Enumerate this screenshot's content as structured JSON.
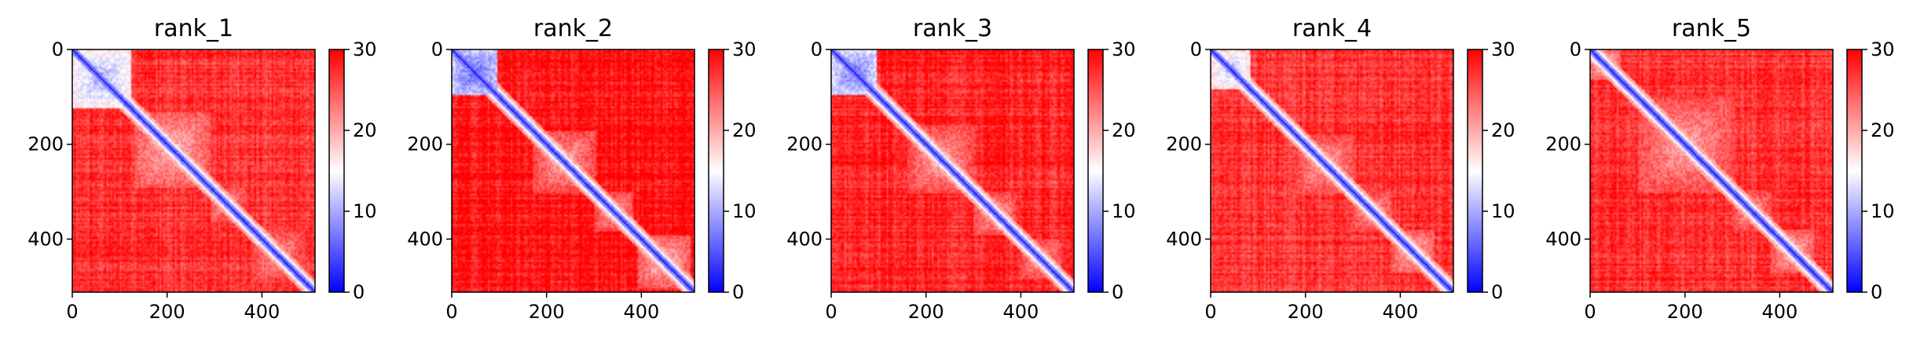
{
  "chart_data": [
    {
      "type": "heatmap",
      "title": "rank_1",
      "matrix_size": 512,
      "xlim": [
        0,
        512
      ],
      "ylim": [
        512,
        0
      ],
      "xticks": [
        0,
        200,
        400
      ],
      "yticks": [
        0,
        200,
        400
      ],
      "colorbar": {
        "ticks": [
          0,
          10,
          20,
          30
        ],
        "range": [
          0,
          30
        ],
        "colormap": "bwr"
      },
      "diag_seed": 1,
      "low_blocks": [
        {
          "start": 0,
          "end": 120,
          "value": 10
        },
        {
          "start": 130,
          "end": 290,
          "value": 19
        },
        {
          "start": 290,
          "end": 360,
          "value": 20
        },
        {
          "start": 375,
          "end": 490,
          "value": 21
        }
      ],
      "background": 27
    },
    {
      "type": "heatmap",
      "title": "rank_2",
      "matrix_size": 512,
      "xlim": [
        0,
        512
      ],
      "ylim": [
        512,
        0
      ],
      "xticks": [
        0,
        200,
        400
      ],
      "yticks": [
        0,
        200,
        400
      ],
      "colorbar": {
        "ticks": [
          0,
          10,
          20,
          30
        ],
        "range": [
          0,
          30
        ],
        "colormap": "bwr"
      },
      "diag_seed": 2,
      "low_blocks": [
        {
          "start": 0,
          "end": 95,
          "value": 6
        },
        {
          "start": 170,
          "end": 300,
          "value": 20
        },
        {
          "start": 300,
          "end": 380,
          "value": 20
        },
        {
          "start": 390,
          "end": 500,
          "value": 19
        }
      ],
      "background": 29
    },
    {
      "type": "heatmap",
      "title": "rank_3",
      "matrix_size": 512,
      "xlim": [
        0,
        512
      ],
      "ylim": [
        512,
        0
      ],
      "xticks": [
        0,
        200,
        400
      ],
      "yticks": [
        0,
        200,
        400
      ],
      "colorbar": {
        "ticks": [
          0,
          10,
          20,
          30
        ],
        "range": [
          0,
          30
        ],
        "colormap": "bwr"
      },
      "diag_seed": 3,
      "low_blocks": [
        {
          "start": 0,
          "end": 95,
          "value": 7
        },
        {
          "start": 160,
          "end": 300,
          "value": 20
        },
        {
          "start": 300,
          "end": 390,
          "value": 20
        },
        {
          "start": 400,
          "end": 480,
          "value": 20
        }
      ],
      "background": 28
    },
    {
      "type": "heatmap",
      "title": "rank_4",
      "matrix_size": 512,
      "xlim": [
        0,
        512
      ],
      "ylim": [
        512,
        0
      ],
      "xticks": [
        0,
        200,
        400
      ],
      "yticks": [
        0,
        200,
        400
      ],
      "colorbar": {
        "ticks": [
          0,
          10,
          20,
          30
        ],
        "range": [
          0,
          30
        ],
        "colormap": "bwr"
      },
      "diag_seed": 4,
      "low_blocks": [
        {
          "start": 0,
          "end": 80,
          "value": 11
        },
        {
          "start": 180,
          "end": 300,
          "value": 20
        },
        {
          "start": 300,
          "end": 380,
          "value": 20
        },
        {
          "start": 380,
          "end": 470,
          "value": 19
        }
      ],
      "background": 27
    },
    {
      "type": "heatmap",
      "title": "rank_5",
      "matrix_size": 512,
      "xlim": [
        0,
        512
      ],
      "ylim": [
        512,
        0
      ],
      "xticks": [
        0,
        200,
        400
      ],
      "yticks": [
        0,
        200,
        400
      ],
      "colorbar": {
        "ticks": [
          0,
          10,
          20,
          30
        ],
        "range": [
          0,
          30
        ],
        "colormap": "bwr"
      },
      "diag_seed": 5,
      "low_blocks": [
        {
          "start": 0,
          "end": 60,
          "value": 18
        },
        {
          "start": 100,
          "end": 300,
          "value": 20
        },
        {
          "start": 300,
          "end": 380,
          "value": 20
        },
        {
          "start": 380,
          "end": 470,
          "value": 19
        }
      ],
      "background": 27
    }
  ]
}
